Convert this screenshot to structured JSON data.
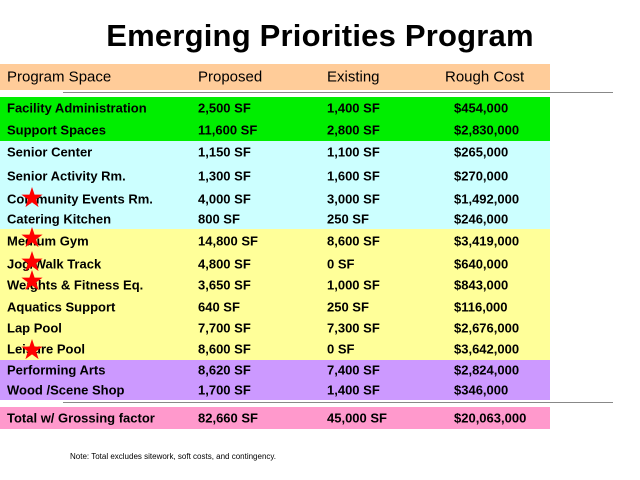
{
  "title": "Emerging Priorities Program",
  "header": {
    "program_space": "Program Space",
    "proposed": "Proposed",
    "existing": "Existing",
    "rough_cost": "Rough Cost"
  },
  "rows": [
    {
      "space": "Facility Administration",
      "proposed": "2,500 SF",
      "existing": "1,400 SF",
      "cost": "$454,000",
      "color": "#00ee00",
      "starred": false
    },
    {
      "space": "Support Spaces",
      "proposed": "11,600 SF",
      "existing": "2,800 SF",
      "cost": "$2,830,000",
      "color": "#00ee00",
      "starred": false
    },
    {
      "space": "Senior Center",
      "proposed": "1,150 SF",
      "existing": "1,100 SF",
      "cost": "$265,000",
      "color": "#ccffff",
      "starred": false
    },
    {
      "space": "Senior Activity Rm.",
      "proposed": "1,300 SF",
      "existing": "1,600 SF",
      "cost": "$270,000",
      "color": "#ccffff",
      "starred": false
    },
    {
      "space": "Community Events Rm.",
      "proposed": "4,000 SF",
      "existing": "3,000 SF",
      "cost": "$1,492,000",
      "color": "#ccffff",
      "starred": true
    },
    {
      "space": "Catering Kitchen",
      "proposed": "800 SF",
      "existing": "250 SF",
      "cost": "$246,000",
      "color": "#ccffff",
      "starred": false
    },
    {
      "space": "Medium Gym",
      "proposed": "14,800 SF",
      "existing": "8,600 SF",
      "cost": "$3,419,000",
      "color": "#ffff99",
      "starred": true
    },
    {
      "space": "Jog/Walk Track",
      "proposed": "4,800 SF",
      "existing": "0 SF",
      "cost": "$640,000",
      "color": "#ffff99",
      "starred": true
    },
    {
      "space": "Weights & Fitness Eq.",
      "proposed": "3,650 SF",
      "existing": "1,000 SF",
      "cost": "$843,000",
      "color": "#ffff99",
      "starred": true
    },
    {
      "space": "Aquatics Support",
      "proposed": "640 SF",
      "existing": "250 SF",
      "cost": "$116,000",
      "color": "#ffff99",
      "starred": false
    },
    {
      "space": "Lap Pool",
      "proposed": "7,700 SF",
      "existing": "7,300 SF",
      "cost": "$2,676,000",
      "color": "#ffff99",
      "starred": false
    },
    {
      "space": "Leisure Pool",
      "proposed": "8,600 SF",
      "existing": "0 SF",
      "cost": "$3,642,000",
      "color": "#ffff99",
      "starred": true
    },
    {
      "space": "Performing Arts",
      "proposed": "8,620 SF",
      "existing": "7,400 SF",
      "cost": "$2,824,000",
      "color": "#cc99ff",
      "starred": false
    },
    {
      "space": "Wood /Scene Shop",
      "proposed": "1,700 SF",
      "existing": "1,400 SF",
      "cost": "$346,000",
      "color": "#cc99ff",
      "starred": false
    }
  ],
  "total": {
    "label": "Total w/ Grossing factor",
    "proposed": "82,660 SF",
    "existing": "45,000 SF",
    "cost": "$20,063,000",
    "color": "#ff99cc"
  },
  "colors": {
    "header": "#ffcc99",
    "star": "#ff0000"
  },
  "note": "Note:  Total excludes sitework, soft costs, and contingency."
}
